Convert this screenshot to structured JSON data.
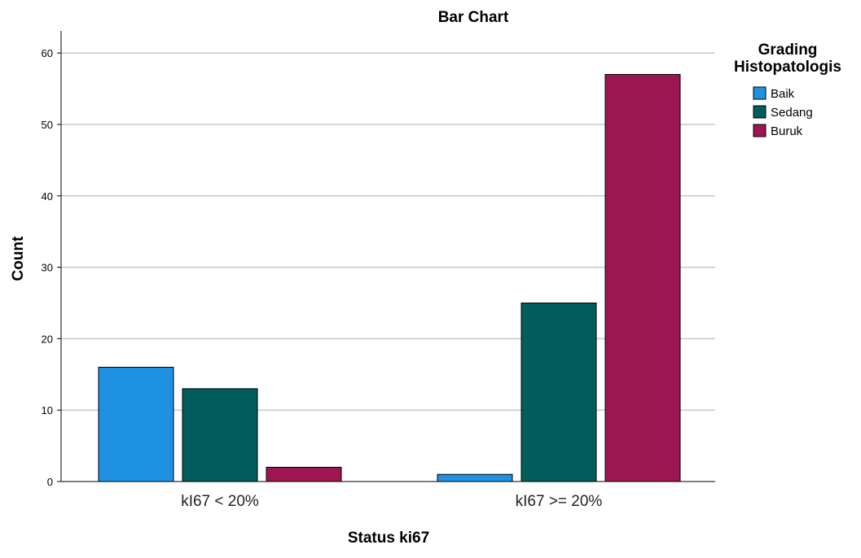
{
  "chart_data": {
    "type": "bar",
    "title": "Bar Chart",
    "xlabel": "Status ki67",
    "ylabel": "Count",
    "categories": [
      "kI67 < 20%",
      "kI67 >= 20%"
    ],
    "ylim": [
      0,
      63
    ],
    "yticks": [
      0,
      10,
      20,
      30,
      40,
      50,
      60
    ],
    "grid": true,
    "legend": {
      "title_lines": [
        "Grading",
        "Histopatologis"
      ],
      "placement": "top-right"
    },
    "series": [
      {
        "name": "Baik",
        "color": "#1f91e3",
        "values": [
          16,
          1
        ]
      },
      {
        "name": "Sedang",
        "color": "#025c5c",
        "values": [
          13,
          25
        ]
      },
      {
        "name": "Buruk",
        "color": "#9c1651",
        "values": [
          2,
          57
        ]
      }
    ]
  }
}
